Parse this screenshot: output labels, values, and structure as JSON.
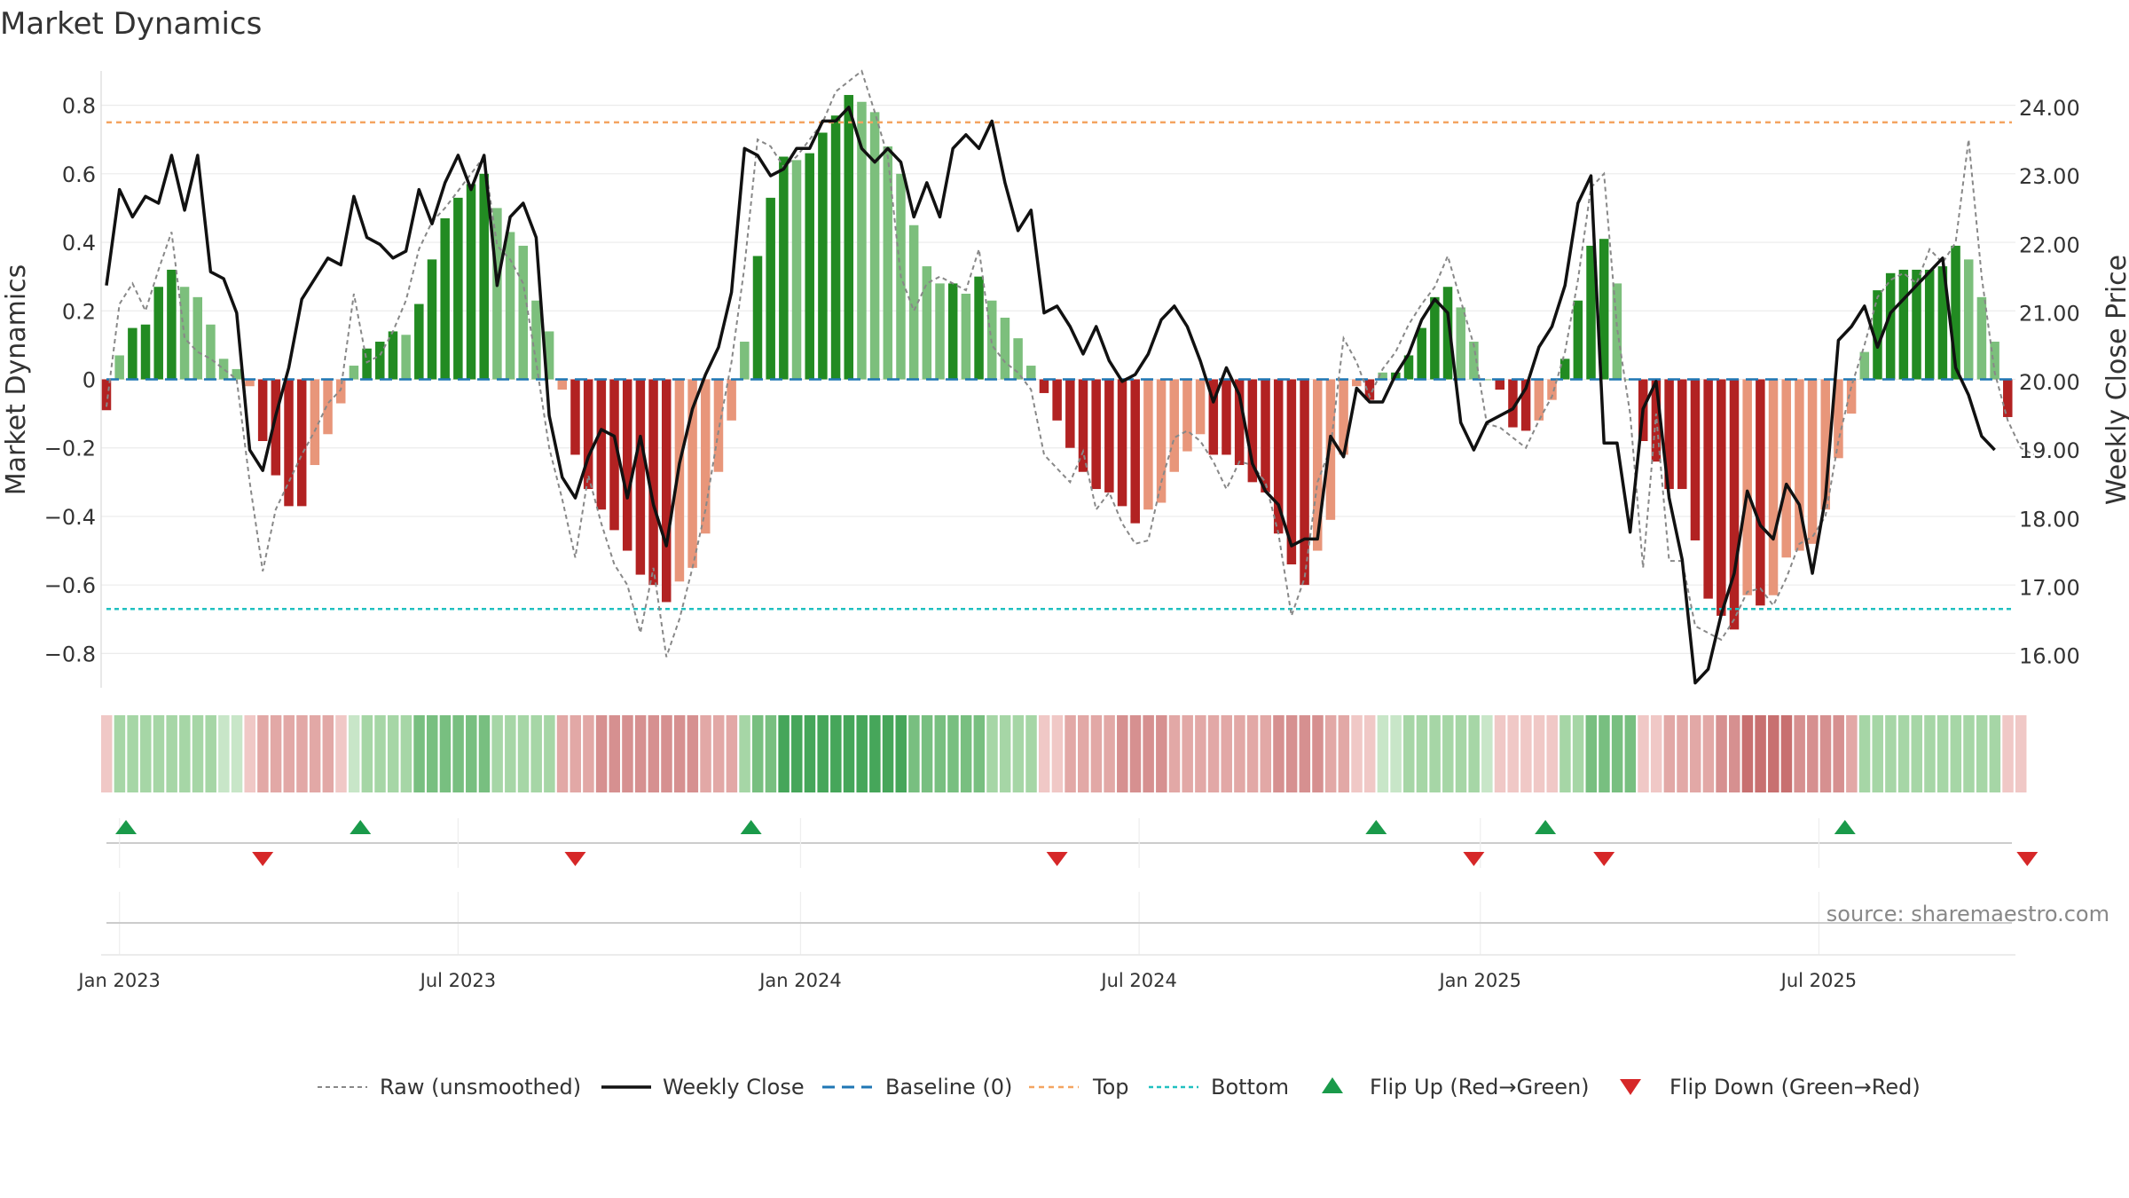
{
  "title": "Market Dynamics",
  "source": "source: sharemaestro.com",
  "colors": {
    "strong_green": "#228b22",
    "light_green": "#7cbf7c",
    "strong_red": "#b22222",
    "light_red": "#e8967a",
    "close_line": "#111111",
    "raw_line": "#888888",
    "baseline": "#1f77b4",
    "top": "#f4a460",
    "bottom": "#20c0c0",
    "flip_up": "#1a9a4a",
    "flip_down": "#d62728"
  },
  "chart_data": {
    "type": "bar",
    "left_axis": {
      "label": "Market Dynamics",
      "ylim": [
        -0.9,
        0.9
      ],
      "ticks": [
        0.8,
        0.6,
        0.4,
        0.2,
        0,
        -0.2,
        -0.4,
        -0.6,
        -0.8
      ],
      "tick_labels": [
        "0.8",
        "0.6",
        "0.4",
        "0.2",
        "0",
        "−0.2",
        "−0.4",
        "−0.6",
        "−0.8"
      ]
    },
    "right_axis": {
      "label": "Weekly Close Price",
      "ylim": [
        15.53,
        24.53
      ],
      "ticks": [
        24,
        23,
        22,
        21,
        20,
        19,
        18,
        17,
        16
      ],
      "tick_labels": [
        "24.00",
        "23.00",
        "22.00",
        "21.00",
        "20.00",
        "19.00",
        "18.00",
        "17.00",
        "16.00"
      ]
    },
    "x_axis": {
      "start": "2022-12-26",
      "weeks": 148,
      "tick_labels": [
        "Jan 2023",
        "Jul 2023",
        "Jan 2024",
        "Jul 2024",
        "Jan 2025",
        "Jul 2025"
      ],
      "tick_weeks": [
        1,
        27,
        53.3,
        79.3,
        105.5,
        131.5
      ]
    },
    "levels": {
      "top": 0.75,
      "bottom": -0.67,
      "baseline": 0
    },
    "momentum": [
      -0.09,
      0.07,
      0.15,
      0.16,
      0.27,
      0.32,
      0.27,
      0.24,
      0.16,
      0.06,
      0.03,
      -0.02,
      -0.18,
      -0.28,
      -0.37,
      -0.37,
      -0.25,
      -0.16,
      -0.07,
      0.04,
      0.09,
      0.11,
      0.14,
      0.13,
      0.22,
      0.35,
      0.47,
      0.53,
      0.57,
      0.6,
      0.5,
      0.43,
      0.39,
      0.23,
      0.14,
      -0.03,
      -0.22,
      -0.32,
      -0.38,
      -0.44,
      -0.5,
      -0.57,
      -0.6,
      -0.65,
      -0.59,
      -0.55,
      -0.45,
      -0.27,
      -0.12,
      0.11,
      0.36,
      0.53,
      0.65,
      0.64,
      0.66,
      0.72,
      0.77,
      0.83,
      0.81,
      0.78,
      0.68,
      0.6,
      0.45,
      0.33,
      0.28,
      0.28,
      0.25,
      0.3,
      0.23,
      0.18,
      0.12,
      0.04,
      -0.04,
      -0.12,
      -0.2,
      -0.27,
      -0.32,
      -0.33,
      -0.37,
      -0.42,
      -0.38,
      -0.36,
      -0.27,
      -0.21,
      -0.16,
      -0.22,
      -0.22,
      -0.25,
      -0.3,
      -0.33,
      -0.45,
      -0.54,
      -0.6,
      -0.5,
      -0.41,
      -0.22,
      -0.02,
      -0.06,
      0.02,
      0.02,
      0.07,
      0.15,
      0.24,
      0.27,
      0.21,
      0.11,
      0.0,
      -0.03,
      -0.14,
      -0.15,
      -0.12,
      -0.06,
      0.06,
      0.23,
      0.39,
      0.41,
      0.28,
      0.0,
      -0.18,
      -0.24,
      -0.32,
      -0.32,
      -0.47,
      -0.64,
      -0.69,
      -0.73,
      -0.63,
      -0.66,
      -0.63,
      -0.52,
      -0.5,
      -0.48,
      -0.38,
      -0.23,
      -0.1,
      0.08,
      0.26,
      0.31,
      0.32,
      0.32,
      0.32,
      0.33,
      0.39,
      0.35,
      0.24,
      0.11,
      -0.11
    ],
    "raw": [
      -0.08,
      0.22,
      0.28,
      0.2,
      0.32,
      0.43,
      0.12,
      0.08,
      0.06,
      0.03,
      0.0,
      -0.3,
      -0.56,
      -0.38,
      -0.3,
      -0.22,
      -0.15,
      -0.07,
      -0.03,
      0.25,
      0.05,
      0.07,
      0.14,
      0.23,
      0.38,
      0.46,
      0.5,
      0.55,
      0.6,
      0.65,
      0.39,
      0.35,
      0.28,
      0.05,
      -0.2,
      -0.35,
      -0.52,
      -0.28,
      -0.42,
      -0.54,
      -0.6,
      -0.74,
      -0.55,
      -0.81,
      -0.7,
      -0.55,
      -0.38,
      -0.15,
      0.05,
      0.33,
      0.7,
      0.68,
      0.62,
      0.65,
      0.7,
      0.75,
      0.84,
      0.87,
      0.9,
      0.78,
      0.65,
      0.3,
      0.2,
      0.28,
      0.3,
      0.28,
      0.26,
      0.38,
      0.1,
      0.05,
      0.02,
      -0.03,
      -0.22,
      -0.26,
      -0.3,
      -0.21,
      -0.38,
      -0.33,
      -0.42,
      -0.48,
      -0.47,
      -0.3,
      -0.17,
      -0.15,
      -0.18,
      -0.24,
      -0.32,
      -0.24,
      -0.25,
      -0.3,
      -0.45,
      -0.69,
      -0.58,
      -0.3,
      -0.2,
      0.12,
      0.05,
      -0.05,
      0.03,
      0.08,
      0.16,
      0.22,
      0.27,
      0.36,
      0.23,
      0.1,
      -0.13,
      -0.14,
      -0.17,
      -0.2,
      -0.12,
      -0.05,
      0.08,
      0.29,
      0.56,
      0.6,
      0.15,
      -0.1,
      -0.55,
      -0.1,
      -0.53,
      -0.53,
      -0.72,
      -0.74,
      -0.76,
      -0.7,
      -0.62,
      -0.61,
      -0.66,
      -0.58,
      -0.48,
      -0.46,
      -0.4,
      -0.18,
      -0.02,
      0.1,
      0.24,
      0.29,
      0.31,
      0.28,
      0.38,
      0.34,
      0.4,
      0.7,
      0.3,
      0.02,
      -0.12,
      -0.2,
      -0.22
    ],
    "close": [
      21.4,
      22.8,
      22.4,
      22.7,
      22.6,
      23.3,
      22.5,
      23.3,
      21.6,
      21.5,
      21.0,
      19.0,
      18.7,
      19.5,
      20.2,
      21.2,
      21.5,
      21.8,
      21.7,
      22.7,
      22.1,
      22.0,
      21.8,
      21.9,
      22.8,
      22.3,
      22.9,
      23.3,
      22.8,
      23.3,
      21.4,
      22.4,
      22.6,
      22.1,
      19.5,
      18.6,
      18.3,
      18.9,
      19.3,
      19.2,
      18.3,
      19.2,
      18.2,
      17.6,
      18.8,
      19.6,
      20.1,
      20.5,
      21.3,
      23.4,
      23.3,
      23.0,
      23.1,
      23.4,
      23.4,
      23.8,
      23.8,
      24.0,
      23.4,
      23.2,
      23.4,
      23.2,
      22.4,
      22.9,
      22.4,
      23.4,
      23.6,
      23.4,
      23.8,
      22.9,
      22.2,
      22.5,
      21.0,
      21.1,
      20.8,
      20.4,
      20.8,
      20.3,
      20.0,
      20.1,
      20.4,
      20.9,
      21.1,
      20.8,
      20.3,
      19.7,
      20.2,
      19.8,
      18.8,
      18.4,
      18.2,
      17.6,
      17.7,
      17.7,
      19.2,
      18.9,
      19.9,
      19.7,
      19.7,
      20.1,
      20.4,
      20.9,
      21.2,
      21.0,
      19.4,
      19.0,
      19.4,
      19.5,
      19.6,
      19.9,
      20.5,
      20.8,
      21.4,
      22.6,
      23.0,
      19.1,
      19.1,
      17.8,
      19.6,
      20.0,
      18.3,
      17.4,
      15.6,
      15.8,
      16.6,
      17.2,
      18.4,
      17.9,
      17.7,
      18.5,
      18.2,
      17.2,
      18.3,
      20.6,
      20.8,
      21.1,
      20.5,
      21.0,
      21.2,
      21.4,
      21.6,
      21.8,
      20.2,
      19.8,
      19.2,
      19.0
    ],
    "regime_strength": [
      1,
      2,
      2,
      2,
      2,
      2,
      2,
      2,
      2,
      1,
      1,
      1,
      2,
      2,
      2,
      2,
      2,
      2,
      1,
      1,
      2,
      2,
      2,
      2,
      3,
      3,
      3,
      3,
      3,
      3,
      2,
      2,
      2,
      2,
      2,
      2,
      2,
      2,
      3,
      3,
      3,
      3,
      3,
      3,
      3,
      3,
      2,
      2,
      2,
      2,
      3,
      3,
      4,
      4,
      4,
      4,
      4,
      4,
      4,
      4,
      4,
      4,
      3,
      3,
      3,
      3,
      3,
      3,
      2,
      2,
      2,
      2,
      1,
      1,
      2,
      2,
      2,
      2,
      3,
      3,
      3,
      3,
      2,
      2,
      2,
      2,
      2,
      2,
      2,
      2,
      3,
      3,
      3,
      3,
      2,
      2,
      1,
      1,
      1,
      1,
      2,
      2,
      2,
      2,
      2,
      2,
      1,
      1,
      1,
      1,
      1,
      1,
      2,
      2,
      3,
      3,
      3,
      3,
      1,
      1,
      2,
      2,
      2,
      2,
      3,
      3,
      4,
      4,
      4,
      4,
      3,
      3,
      3,
      3,
      2,
      2,
      2,
      2,
      2,
      2,
      2,
      2,
      2,
      2,
      2,
      2,
      1,
      1
    ],
    "flip_up_weeks": [
      1.5,
      19.5,
      49.5,
      97.5,
      110.5,
      133.5
    ],
    "flip_down_weeks": [
      12,
      36,
      73,
      105,
      115,
      147.5
    ],
    "legend": [
      {
        "key": "raw",
        "label": "Raw (unsmoothed)"
      },
      {
        "key": "close",
        "label": "Weekly Close"
      },
      {
        "key": "baseline",
        "label": "Baseline (0)"
      },
      {
        "key": "top",
        "label": "Top"
      },
      {
        "key": "bottom",
        "label": "Bottom"
      },
      {
        "key": "flip_up",
        "label": "Flip Up (Red→Green)"
      },
      {
        "key": "flip_down",
        "label": "Flip Down (Green→Red)"
      }
    ]
  }
}
